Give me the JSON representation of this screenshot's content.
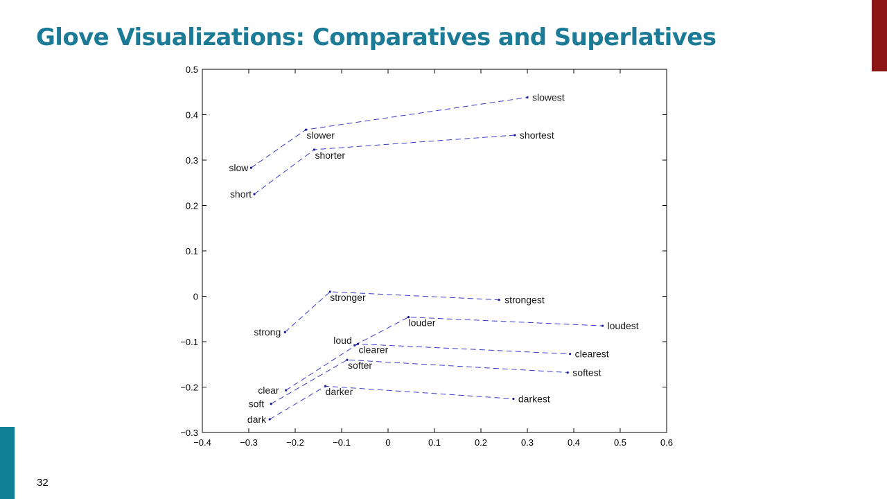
{
  "slide": {
    "title": "Glove Visualizations: Comparatives and Superlatives",
    "page_number": "32",
    "accent_top_color": "#8b1515",
    "accent_bottom_color": "#0f8096",
    "title_color": "#1b7a96"
  },
  "chart_data": {
    "type": "scatter",
    "title": "",
    "xlabel": "",
    "ylabel": "",
    "xlim": [
      -0.4,
      0.6
    ],
    "ylim": [
      -0.3,
      0.5
    ],
    "x_ticks": [
      -0.4,
      -0.3,
      -0.2,
      -0.1,
      0,
      0.1,
      0.2,
      0.3,
      0.4,
      0.5,
      0.6
    ],
    "x_tick_labels": [
      "−0.4",
      "−0.3",
      "−0.2",
      "−0.1",
      "0",
      "0.1",
      "0.2",
      "0.3",
      "0.4",
      "0.5",
      "0.6"
    ],
    "y_ticks": [
      0.5,
      0.4,
      0.3,
      0.2,
      0.1,
      0,
      -0.1,
      -0.2,
      -0.3
    ],
    "y_tick_labels": [
      "0.5",
      "0.4",
      "0.3",
      "0.2",
      "0.1",
      "0",
      "−0.1",
      "−0.2",
      "−0.3"
    ],
    "grid": false,
    "line_style": "dashed",
    "line_color": "#3a3ac8",
    "groups": [
      {
        "points": [
          {
            "word": "slow",
            "x": -0.295,
            "y": 0.283
          },
          {
            "word": "slower",
            "x": -0.177,
            "y": 0.367
          },
          {
            "word": "slowest",
            "x": 0.3,
            "y": 0.438
          }
        ]
      },
      {
        "points": [
          {
            "word": "short",
            "x": -0.288,
            "y": 0.225
          },
          {
            "word": "shorter",
            "x": -0.159,
            "y": 0.323
          },
          {
            "word": "shortest",
            "x": 0.273,
            "y": 0.355
          }
        ]
      },
      {
        "points": [
          {
            "word": "strong",
            "x": -0.222,
            "y": -0.079
          },
          {
            "word": "stronger",
            "x": -0.125,
            "y": 0.01
          },
          {
            "word": "strongest",
            "x": 0.239,
            "y": -0.008
          }
        ]
      },
      {
        "points": [
          {
            "word": "loud",
            "x": -0.072,
            "y": -0.108
          },
          {
            "word": "louder",
            "x": 0.044,
            "y": -0.046
          },
          {
            "word": "loudest",
            "x": 0.462,
            "y": -0.065
          }
        ]
      },
      {
        "points": [
          {
            "word": "clear",
            "x": -0.22,
            "y": -0.207
          },
          {
            "word": "clearer",
            "x": -0.065,
            "y": -0.105
          },
          {
            "word": "clearest",
            "x": 0.392,
            "y": -0.127
          }
        ]
      },
      {
        "points": [
          {
            "word": "soft",
            "x": -0.252,
            "y": -0.237
          },
          {
            "word": "softer",
            "x": -0.088,
            "y": -0.14
          },
          {
            "word": "softest",
            "x": 0.387,
            "y": -0.168
          }
        ]
      },
      {
        "points": [
          {
            "word": "dark",
            "x": -0.255,
            "y": -0.271
          },
          {
            "word": "darker",
            "x": -0.135,
            "y": -0.198
          },
          {
            "word": "darkest",
            "x": 0.27,
            "y": -0.226
          }
        ]
      }
    ]
  }
}
